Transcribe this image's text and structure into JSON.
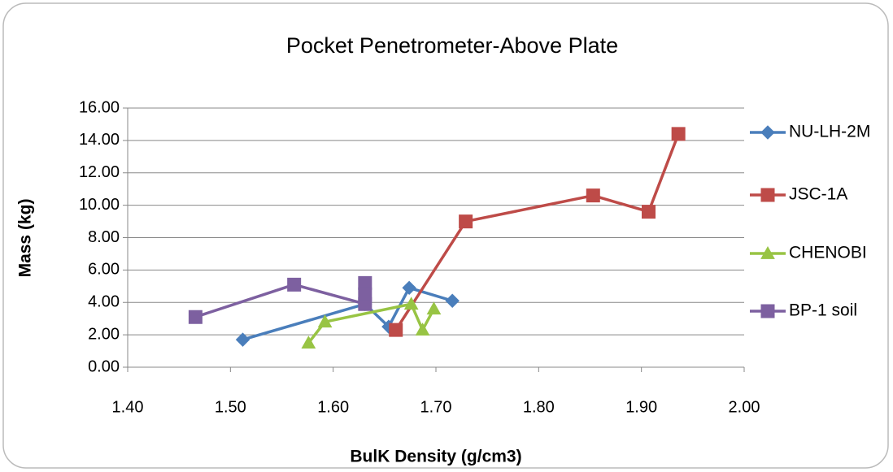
{
  "chart_data": {
    "type": "line",
    "title": "Pocket Penetrometer-Above Plate",
    "x_label": "BulK Density (g/cm3)",
    "y_label": "Mass (kg)",
    "xlim": [
      1.4,
      2.0
    ],
    "xticks": [
      {
        "value": 1.4,
        "label": "1.40"
      },
      {
        "value": 1.5,
        "label": "1.50"
      },
      {
        "value": 1.6,
        "label": "1.60"
      },
      {
        "value": 1.7,
        "label": "1.70"
      },
      {
        "value": 1.8,
        "label": "1.80"
      },
      {
        "value": 1.9,
        "label": "1.90"
      },
      {
        "value": 2.0,
        "label": "2.00"
      }
    ],
    "ylim": [
      0,
      16
    ],
    "yticks": [
      {
        "value": 0,
        "label": "0.00"
      },
      {
        "value": 2,
        "label": "2.00"
      },
      {
        "value": 4,
        "label": "4.00"
      },
      {
        "value": 6,
        "label": "6.00"
      },
      {
        "value": 8,
        "label": "8.00"
      },
      {
        "value": 10,
        "label": "10.00"
      },
      {
        "value": 12,
        "label": "12.00"
      },
      {
        "value": 14,
        "label": "14.00"
      },
      {
        "value": 16,
        "label": "16.00"
      }
    ],
    "grid": true,
    "legend": "right",
    "series": [
      {
        "name": "NU-LH-2M",
        "color": "#4a7ebb",
        "marker": "diamond",
        "x": [
          1.512,
          1.631,
          1.654,
          1.674,
          1.716
        ],
        "values": [
          1.7,
          3.9,
          2.5,
          4.9,
          4.1
        ]
      },
      {
        "name": "JSC-1A",
        "color": "#be4b48",
        "marker": "square",
        "x": [
          1.661,
          1.729,
          1.853,
          1.907,
          1.936
        ],
        "values": [
          2.3,
          9.0,
          10.6,
          9.6,
          14.4
        ]
      },
      {
        "name": "CHENOBI",
        "color": "#98c444",
        "marker": "triangle",
        "x": [
          1.576,
          1.592,
          1.676,
          1.687,
          1.698
        ],
        "values": [
          1.5,
          2.8,
          3.9,
          2.3,
          3.6
        ]
      },
      {
        "name": "BP-1 soil",
        "color": "#7d60a0",
        "marker": "square",
        "x": [
          1.466,
          1.562,
          1.631,
          1.631,
          1.631
        ],
        "values": [
          3.1,
          5.1,
          3.9,
          5.2,
          4.5
        ]
      }
    ]
  }
}
